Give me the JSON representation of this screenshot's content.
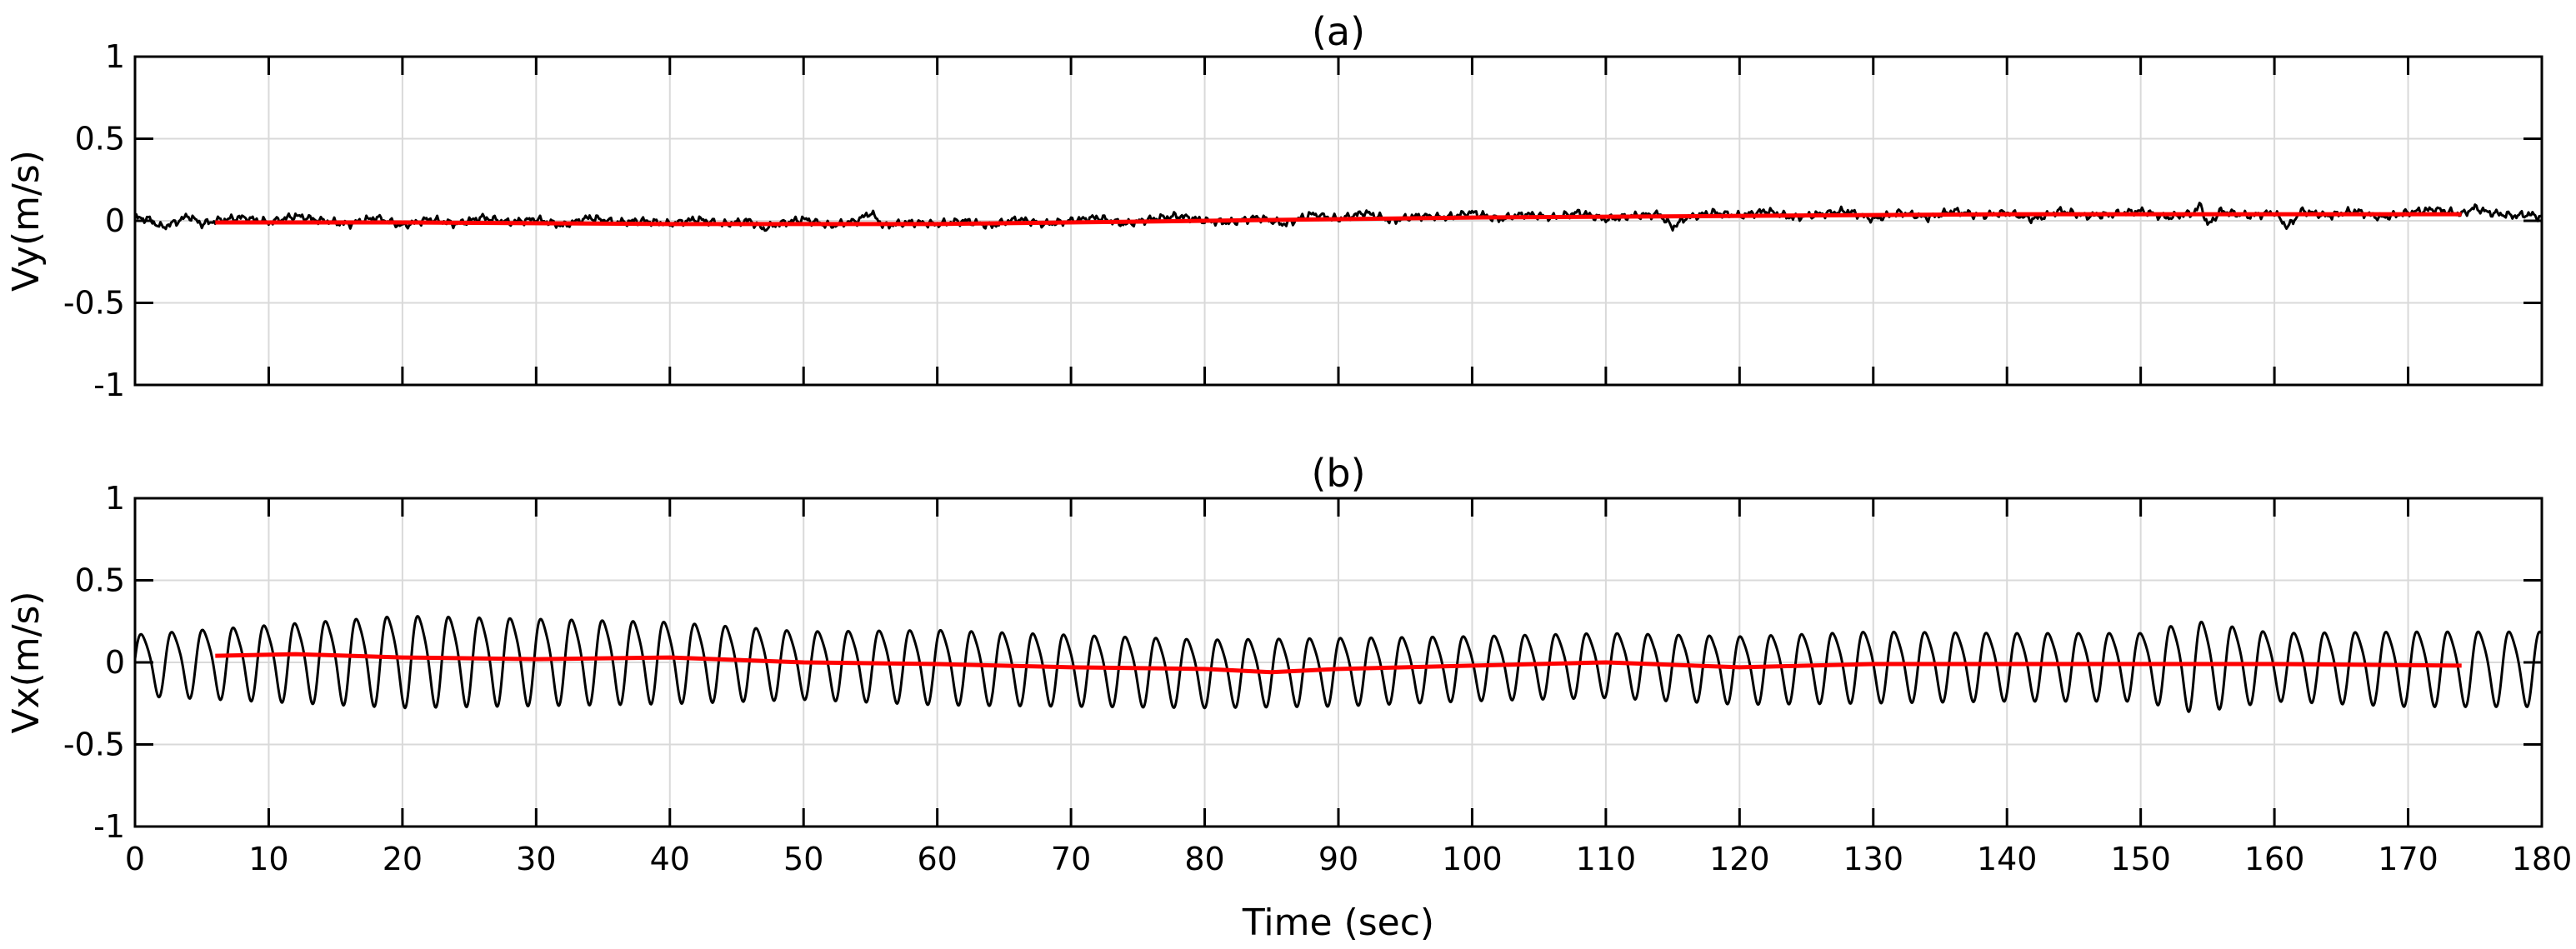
{
  "figure": {
    "xlabel": "Time (sec)"
  },
  "chart_data": [
    {
      "type": "line",
      "title": "(a)",
      "xlabel": "",
      "ylabel": "Vy(m/s)",
      "xlim": [
        0,
        180
      ],
      "ylim": [
        -1,
        1
      ],
      "x_ticks": [
        "0",
        "10",
        "20",
        "30",
        "40",
        "50",
        "60",
        "70",
        "80",
        "90",
        "100",
        "110",
        "120",
        "130",
        "140",
        "150",
        "160",
        "170",
        "180"
      ],
      "y_ticks": [
        "1",
        "0.5",
        "0",
        "-0.5",
        "-1"
      ],
      "grid": true,
      "series": [
        {
          "color": "#000000",
          "style": "noisy signal",
          "x": [
            0,
            1,
            2,
            3,
            4,
            5,
            6,
            8,
            10,
            12,
            14,
            16,
            18,
            20,
            22,
            24,
            26,
            28,
            30,
            32,
            34,
            36,
            38,
            40,
            42,
            44,
            46,
            47,
            48,
            50,
            52,
            54,
            55,
            56,
            58,
            60,
            62,
            64,
            66,
            68,
            70,
            72,
            74,
            76,
            78,
            80,
            82,
            84,
            86,
            88,
            90,
            92,
            94,
            96,
            98,
            100,
            102,
            104,
            106,
            108,
            110,
            112,
            114,
            115,
            116,
            118,
            120,
            122,
            124,
            126,
            128,
            130,
            132,
            134,
            136,
            138,
            140,
            142,
            144,
            146,
            148,
            150,
            152,
            154,
            154.5,
            155,
            156,
            158,
            160,
            161,
            162,
            164,
            166,
            168,
            170,
            172,
            174,
            175,
            176,
            178,
            179,
            180
          ],
          "values": [
            0.02,
            0.01,
            -0.04,
            -0.01,
            0.03,
            -0.02,
            0.0,
            0.02,
            -0.01,
            0.03,
            0.0,
            -0.02,
            0.02,
            -0.03,
            0.01,
            -0.02,
            0.02,
            -0.01,
            0.01,
            -0.03,
            0.02,
            -0.01,
            0.0,
            -0.02,
            0.01,
            -0.02,
            0.0,
            -0.05,
            -0.02,
            0.01,
            -0.03,
            0.0,
            0.05,
            -0.03,
            -0.01,
            -0.02,
            0.0,
            -0.03,
            0.01,
            -0.02,
            0.0,
            0.02,
            -0.02,
            0.01,
            0.03,
            0.0,
            -0.01,
            0.02,
            -0.02,
            0.04,
            0.01,
            0.05,
            0.0,
            0.03,
            0.02,
            0.05,
            0.01,
            0.04,
            0.02,
            0.05,
            0.01,
            0.03,
            0.04,
            -0.04,
            0.02,
            0.05,
            0.03,
            0.06,
            0.02,
            0.04,
            0.06,
            0.01,
            0.05,
            0.02,
            0.06,
            0.03,
            0.05,
            0.01,
            0.06,
            0.03,
            0.04,
            0.06,
            0.02,
            0.05,
            0.1,
            -0.03,
            0.06,
            0.03,
            0.05,
            -0.04,
            0.06,
            0.03,
            0.06,
            0.02,
            0.05,
            0.07,
            0.04,
            0.08,
            0.05,
            0.03,
            0.04,
            0.02
          ]
        },
        {
          "color": "#ff0000",
          "style": "trend line",
          "x": [
            6,
            20,
            40,
            60,
            80,
            100,
            120,
            140,
            160,
            174
          ],
          "values": [
            -0.01,
            -0.01,
            -0.02,
            -0.02,
            0.0,
            0.02,
            0.03,
            0.04,
            0.04,
            0.04
          ]
        }
      ]
    },
    {
      "type": "line",
      "title": "(b)",
      "xlabel": "Time (sec)",
      "ylabel": "Vx(m/s)",
      "xlim": [
        0,
        180
      ],
      "ylim": [
        -1,
        1
      ],
      "x_ticks": [
        "0",
        "10",
        "20",
        "30",
        "40",
        "50",
        "60",
        "70",
        "80",
        "90",
        "100",
        "110",
        "120",
        "130",
        "140",
        "150",
        "160",
        "170",
        "180"
      ],
      "y_ticks": [
        "1",
        "0.5",
        "0",
        "-0.5",
        "-1"
      ],
      "grid": true,
      "oscillation": {
        "period": 2.3
      },
      "series": [
        {
          "color": "#000000",
          "style": "oscillating signal",
          "x": [
            0,
            20,
            40,
            50,
            60,
            70,
            80,
            90,
            100,
            110,
            120,
            130,
            140,
            150,
            154,
            160,
            170,
            180
          ],
          "amplitude": [
            0.18,
            0.27,
            0.24,
            0.2,
            0.22,
            0.21,
            0.2,
            0.2,
            0.19,
            0.19,
            0.2,
            0.21,
            0.2,
            0.2,
            0.27,
            0.2,
            0.22,
            0.22
          ],
          "values": [
            0.0,
            0.03,
            0.02,
            0.0,
            -0.01,
            -0.03,
            -0.05,
            -0.04,
            -0.02,
            0.0,
            -0.03,
            -0.01,
            -0.01,
            -0.01,
            0.0,
            -0.01,
            -0.02,
            -0.02
          ]
        },
        {
          "color": "#ff0000",
          "style": "trend line",
          "x": [
            6,
            12,
            20,
            30,
            40,
            50,
            60,
            70,
            80,
            85,
            90,
            100,
            110,
            120,
            130,
            140,
            150,
            160,
            174
          ],
          "values": [
            0.04,
            0.05,
            0.03,
            0.02,
            0.03,
            0.0,
            -0.01,
            -0.03,
            -0.04,
            -0.06,
            -0.04,
            -0.02,
            0.0,
            -0.03,
            -0.01,
            -0.01,
            -0.01,
            -0.01,
            -0.02
          ]
        }
      ]
    }
  ]
}
